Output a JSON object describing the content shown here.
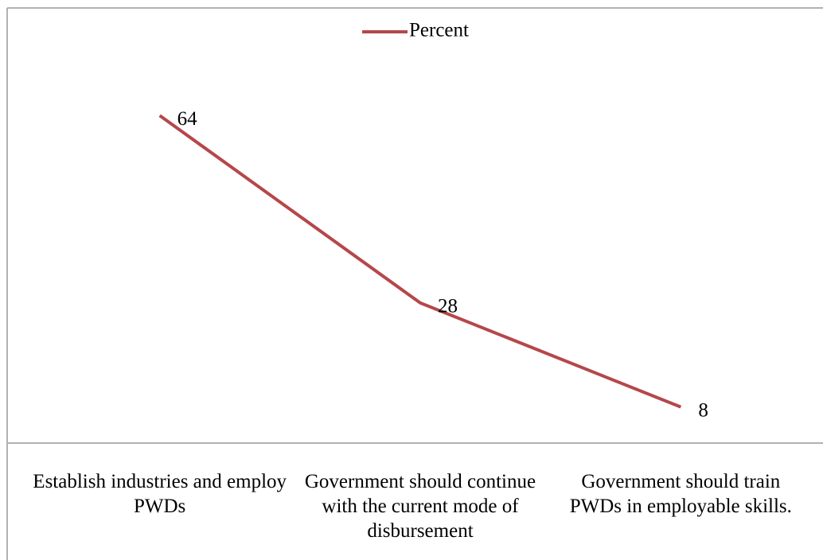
{
  "chart_data": {
    "type": "line",
    "categories": [
      "Establish industries and employ PWDs",
      "Government should continue with the current mode of disbursement",
      "Government should train PWDs in employable skills."
    ],
    "series": [
      {
        "name": "Percent",
        "color": "#b5474a",
        "values": [
          64,
          28,
          8
        ]
      }
    ],
    "ylim": [
      0,
      70
    ],
    "legend": "top"
  }
}
